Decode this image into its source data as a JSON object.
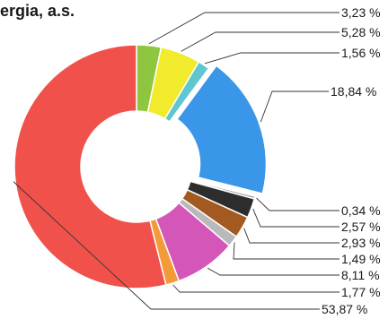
{
  "title": "ergia, a.s.",
  "chart_data": {
    "type": "pie",
    "donut": true,
    "title": "ergia, a.s.",
    "values": [
      3.23,
      5.28,
      1.56,
      18.84,
      0.34,
      2.57,
      2.93,
      1.49,
      8.11,
      1.77,
      53.87
    ],
    "labels": [
      "3,23 %",
      "5,28 %",
      "1,56 %",
      "18,84 %",
      "0,34 %",
      "2,57 %",
      "2,93 %",
      "1,49 %",
      "8,11 %",
      "1,77 %",
      "53,87 %"
    ],
    "colors": [
      "#8fc63f",
      "#f2ea2c",
      "#5ec7cf",
      "#3a96e8",
      "#8a9aa6",
      "#2d2d2d",
      "#a35a20",
      "#b9b9bb",
      "#d456b8",
      "#f39a3a",
      "#f0524b"
    ],
    "exploded_slice": "18,84 %"
  }
}
